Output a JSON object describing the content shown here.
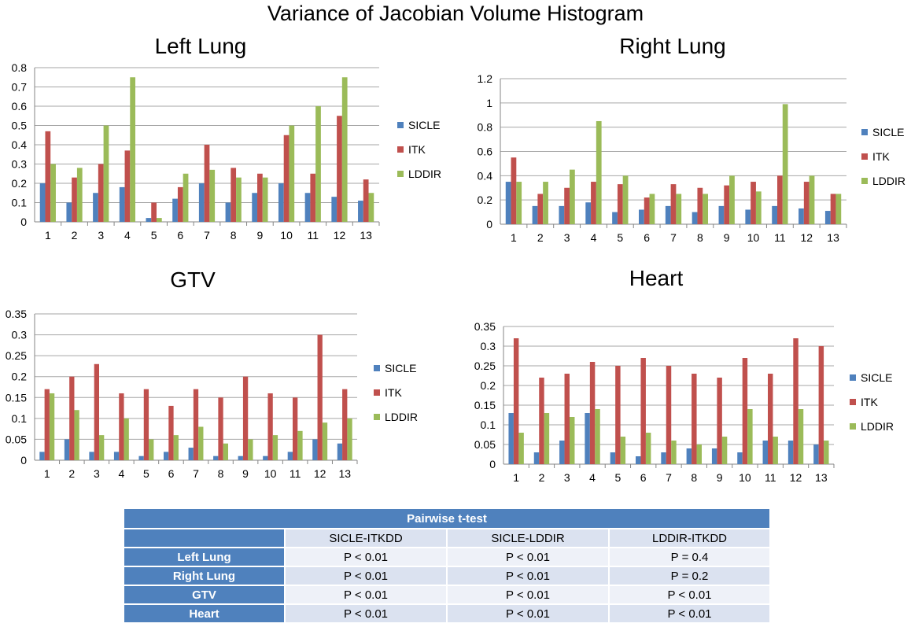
{
  "title": "Variance of Jacobian Volume Histogram",
  "colors": {
    "SICLE": "#4f81bd",
    "ITK": "#c0504d",
    "LDDIR": "#9bbb59"
  },
  "chart_data": [
    {
      "id": "ll",
      "type": "bar",
      "title": "Left Lung",
      "categories": [
        "1",
        "2",
        "3",
        "4",
        "5",
        "6",
        "7",
        "8",
        "9",
        "10",
        "11",
        "12",
        "13"
      ],
      "ylim": [
        0,
        0.8
      ],
      "yticks": [
        "0",
        "0.1",
        "0.2",
        "0.3",
        "0.4",
        "0.5",
        "0.6",
        "0.7",
        "0.8"
      ],
      "series": [
        {
          "name": "SICLE",
          "values": [
            0.2,
            0.1,
            0.15,
            0.18,
            0.02,
            0.12,
            0.2,
            0.1,
            0.15,
            0.2,
            0.15,
            0.13,
            0.11
          ]
        },
        {
          "name": "ITK",
          "values": [
            0.47,
            0.23,
            0.3,
            0.37,
            0.1,
            0.18,
            0.4,
            0.28,
            0.25,
            0.45,
            0.25,
            0.55,
            0.22
          ]
        },
        {
          "name": "LDDIR",
          "values": [
            0.3,
            0.28,
            0.5,
            0.75,
            0.02,
            0.25,
            0.27,
            0.23,
            0.23,
            0.5,
            0.6,
            0.75,
            0.15
          ]
        }
      ]
    },
    {
      "id": "rl",
      "type": "bar",
      "title": "Right Lung",
      "categories": [
        "1",
        "2",
        "3",
        "4",
        "5",
        "6",
        "7",
        "8",
        "9",
        "10",
        "11",
        "12",
        "13"
      ],
      "ylim": [
        0,
        1.2
      ],
      "yticks": [
        "0",
        "0.2",
        "0.4",
        "0.6",
        "0.8",
        "1",
        "1.2"
      ],
      "series": [
        {
          "name": "SICLE",
          "values": [
            0.35,
            0.15,
            0.15,
            0.18,
            0.1,
            0.12,
            0.15,
            0.1,
            0.15,
            0.12,
            0.15,
            0.13,
            0.11
          ]
        },
        {
          "name": "ITK",
          "values": [
            0.55,
            0.25,
            0.3,
            0.35,
            0.33,
            0.22,
            0.33,
            0.3,
            0.32,
            0.35,
            0.4,
            0.35,
            0.25
          ]
        },
        {
          "name": "LDDIR",
          "values": [
            0.35,
            0.35,
            0.45,
            0.85,
            0.4,
            0.25,
            0.25,
            0.25,
            0.4,
            0.27,
            0.99,
            0.4,
            0.25
          ]
        }
      ]
    },
    {
      "id": "gtv",
      "type": "bar",
      "title": "GTV",
      "categories": [
        "1",
        "2",
        "3",
        "4",
        "5",
        "6",
        "7",
        "8",
        "9",
        "10",
        "11",
        "12",
        "13"
      ],
      "ylim": [
        0,
        0.35
      ],
      "yticks": [
        "0",
        "0.05",
        "0.1",
        "0.15",
        "0.2",
        "0.25",
        "0.3",
        "0.35"
      ],
      "series": [
        {
          "name": "SICLE",
          "values": [
            0.02,
            0.05,
            0.02,
            0.02,
            0.01,
            0.02,
            0.03,
            0.01,
            0.01,
            0.01,
            0.02,
            0.05,
            0.04
          ]
        },
        {
          "name": "ITK",
          "values": [
            0.17,
            0.2,
            0.23,
            0.16,
            0.17,
            0.13,
            0.17,
            0.15,
            0.2,
            0.16,
            0.15,
            0.3,
            0.17
          ]
        },
        {
          "name": "LDDIR",
          "values": [
            0.16,
            0.12,
            0.06,
            0.1,
            0.05,
            0.06,
            0.08,
            0.04,
            0.05,
            0.06,
            0.07,
            0.09,
            0.1
          ]
        }
      ]
    },
    {
      "id": "heart",
      "type": "bar",
      "title": "Heart",
      "categories": [
        "1",
        "2",
        "3",
        "4",
        "5",
        "6",
        "7",
        "8",
        "9",
        "10",
        "11",
        "12",
        "13"
      ],
      "ylim": [
        0,
        0.35
      ],
      "yticks": [
        "0",
        "0.05",
        "0.1",
        "0.15",
        "0.2",
        "0.25",
        "0.3",
        "0.35"
      ],
      "series": [
        {
          "name": "SICLE",
          "values": [
            0.13,
            0.03,
            0.06,
            0.13,
            0.03,
            0.02,
            0.03,
            0.04,
            0.04,
            0.03,
            0.06,
            0.06,
            0.05
          ]
        },
        {
          "name": "ITK",
          "values": [
            0.32,
            0.22,
            0.23,
            0.26,
            0.25,
            0.27,
            0.25,
            0.23,
            0.22,
            0.27,
            0.23,
            0.32,
            0.3
          ]
        },
        {
          "name": "LDDIR",
          "values": [
            0.08,
            0.13,
            0.12,
            0.14,
            0.07,
            0.08,
            0.06,
            0.05,
            0.07,
            0.14,
            0.07,
            0.14,
            0.06
          ]
        }
      ]
    }
  ],
  "table": {
    "title": "Pairwise t-test",
    "columns": [
      "SICLE-ITKDD",
      "SICLE-LDDIR",
      "LDDIR-ITKDD"
    ],
    "rows": [
      {
        "label": "Left Lung",
        "cells": [
          "P < 0.01",
          "P < 0.01",
          "P = 0.4"
        ]
      },
      {
        "label": "Right Lung",
        "cells": [
          "P < 0.01",
          "P < 0.01",
          "P  = 0.2"
        ]
      },
      {
        "label": "GTV",
        "cells": [
          "P < 0.01",
          "P < 0.01",
          "P < 0.01"
        ]
      },
      {
        "label": "Heart",
        "cells": [
          "P < 0.01",
          "P < 0.01",
          "P < 0.01"
        ]
      }
    ]
  }
}
